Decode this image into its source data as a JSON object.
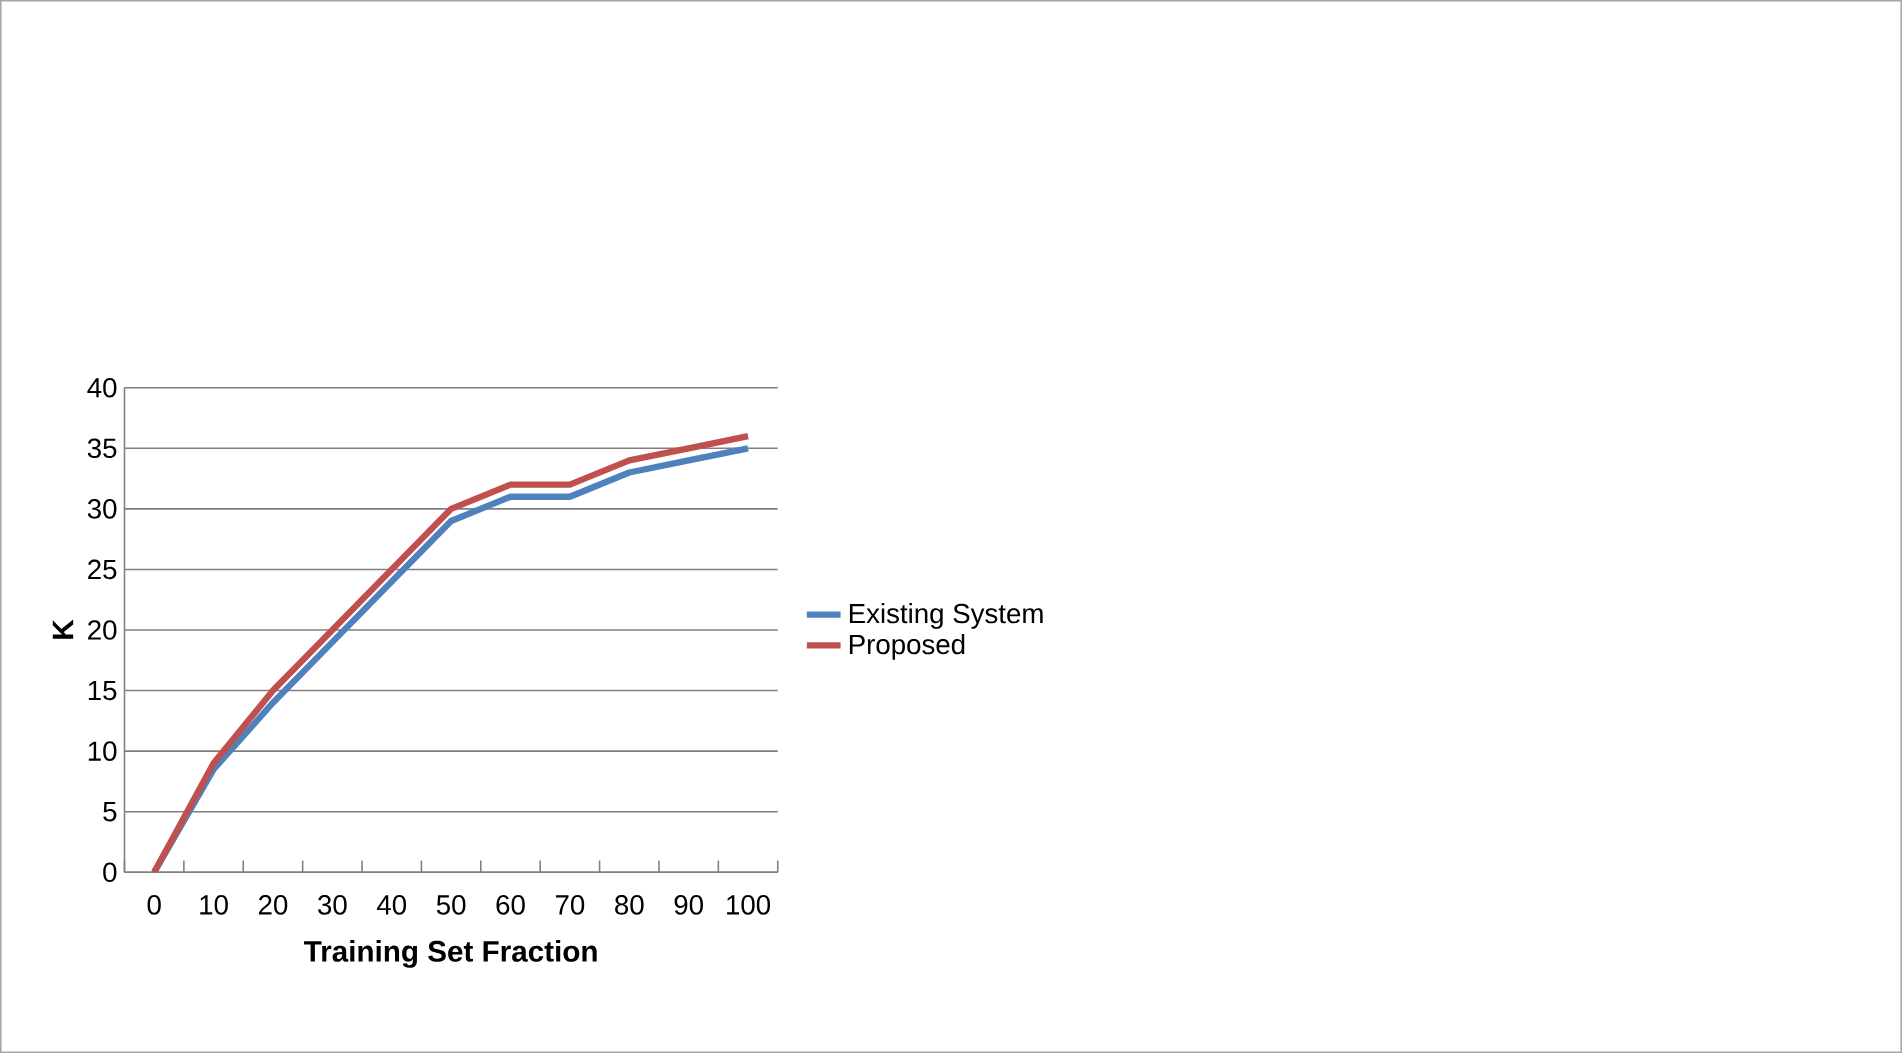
{
  "chart_data": {
    "type": "line",
    "xlabel": "Training Set Fraction",
    "ylabel": "K",
    "categories": [
      "0",
      "10",
      "20",
      "30",
      "40",
      "50",
      "60",
      "70",
      "80",
      "90",
      "100"
    ],
    "series": [
      {
        "name": "Existing System",
        "color": "#4f81bd",
        "values": [
          0,
          8.5,
          14,
          19,
          24,
          29,
          31,
          31,
          33,
          34,
          35
        ]
      },
      {
        "name": "Proposed",
        "color": "#c0504d",
        "values": [
          0,
          9,
          15,
          20,
          25,
          30,
          32,
          32,
          34,
          35,
          36
        ]
      }
    ],
    "ylim": [
      0,
      40
    ],
    "yticks": [
      0,
      5,
      10,
      15,
      20,
      25,
      30,
      35,
      40
    ],
    "grid": "y",
    "legend": "right",
    "marker": "none",
    "line_style": "solid"
  }
}
